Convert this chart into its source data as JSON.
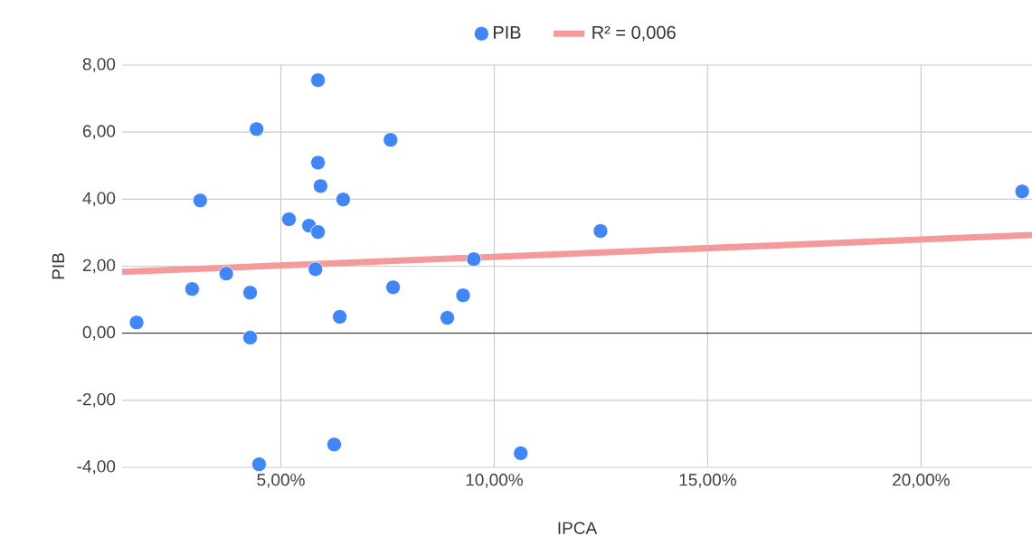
{
  "chart_data": {
    "type": "scatter",
    "xlabel": "IPCA",
    "ylabel": "PIB",
    "xlim": [
      1.28,
      22.6
    ],
    "ylim": [
      -4,
      8
    ],
    "xticks": [
      {
        "value": 5,
        "label": "5,00%"
      },
      {
        "value": 10,
        "label": "10,00%"
      },
      {
        "value": 15,
        "label": "15,00%"
      },
      {
        "value": 20,
        "label": "20,00%"
      }
    ],
    "yticks": [
      {
        "value": -4,
        "label": "-4,00"
      },
      {
        "value": -2,
        "label": "-2,00"
      },
      {
        "value": 0,
        "label": "0,00"
      },
      {
        "value": 2,
        "label": "2,00"
      },
      {
        "value": 4,
        "label": "4,00"
      },
      {
        "value": 6,
        "label": "6,00"
      },
      {
        "value": 8,
        "label": "8,00"
      }
    ],
    "grid": true,
    "legend": "top",
    "ref_lines": [
      {
        "axis": "y",
        "value": 0,
        "color": "#333333"
      }
    ],
    "series": [
      {
        "name": "PIB",
        "marker": "circle",
        "color": "#4285f4",
        "x": [
          1.62,
          2.92,
          3.11,
          3.72,
          4.28,
          4.28,
          4.43,
          4.49,
          5.19,
          5.66,
          5.81,
          5.87,
          5.87,
          5.87,
          5.93,
          6.25,
          6.38,
          6.46,
          7.57,
          7.63,
          8.9,
          9.27,
          9.52,
          10.62,
          12.49,
          22.37
        ],
        "values": [
          0.32,
          1.32,
          3.96,
          1.78,
          1.21,
          -0.13,
          6.09,
          -3.91,
          3.4,
          3.21,
          1.91,
          7.55,
          5.09,
          3.02,
          4.39,
          -3.32,
          0.49,
          3.99,
          5.77,
          1.37,
          0.46,
          1.13,
          2.21,
          -3.58,
          3.05,
          4.23
        ]
      },
      {
        "name": "R² = 0,006",
        "type": "line",
        "color": "#f59a9a",
        "line_style": "solid",
        "x": [
          1.28,
          22.6
        ],
        "values": [
          1.83,
          2.93
        ]
      }
    ]
  }
}
